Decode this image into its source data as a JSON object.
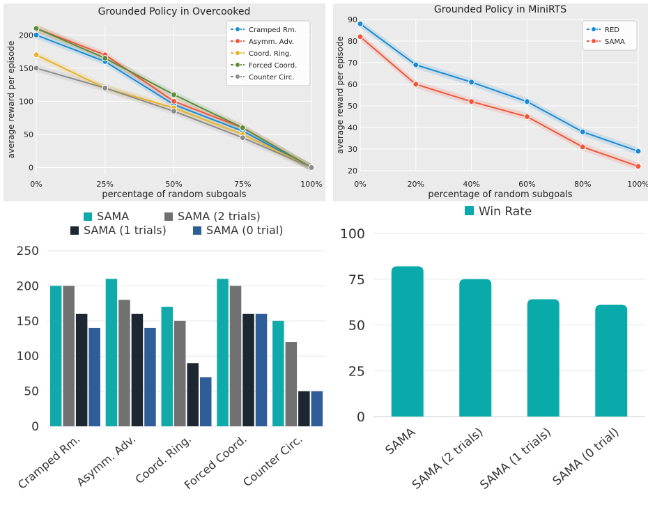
{
  "chart_data": [
    {
      "type": "line",
      "title": "Grounded Policy in Overcooked",
      "xlabel": "percentage of random subgoals",
      "ylabel": "average reward per episode",
      "x": [
        0,
        25,
        50,
        75,
        100
      ],
      "x_tick_labels": [
        "0%",
        "25%",
        "50%",
        "75%",
        "100%"
      ],
      "xlim": [
        0,
        100
      ],
      "ylim": [
        -10,
        215
      ],
      "y_ticks": [
        0,
        50,
        100,
        150,
        200
      ],
      "grid": true,
      "legend_position": "top-right",
      "series": [
        {
          "name": "Cramped Rm.",
          "color": "#1a8ad4",
          "values": [
            200,
            160,
            95,
            55,
            0
          ]
        },
        {
          "name": "Asymm. Adv.",
          "color": "#f2553a",
          "values": [
            210,
            170,
            100,
            60,
            0
          ]
        },
        {
          "name": "Coord. Ring.",
          "color": "#ebb229",
          "values": [
            170,
            120,
            90,
            50,
            0
          ]
        },
        {
          "name": "Forced Coord.",
          "color": "#5d8c3a",
          "values": [
            210,
            165,
            110,
            60,
            0
          ]
        },
        {
          "name": "Counter Circ.",
          "color": "#8b8b8b",
          "values": [
            150,
            120,
            85,
            45,
            0
          ]
        }
      ]
    },
    {
      "type": "line",
      "title": "Grounded Policy in MiniRTS",
      "xlabel": "percentage of random subgoals",
      "ylabel": "average reward per episode",
      "x": [
        0,
        20,
        40,
        60,
        80,
        100
      ],
      "x_tick_labels": [
        "0%",
        "20%",
        "40%",
        "60%",
        "80%",
        "100%"
      ],
      "xlim": [
        0,
        100
      ],
      "ylim": [
        20,
        90
      ],
      "y_ticks": [
        20,
        30,
        40,
        50,
        60,
        70,
        80,
        90
      ],
      "grid": true,
      "legend_position": "top-right",
      "series": [
        {
          "name": "RED",
          "color": "#1a8ad4",
          "values": [
            88,
            69,
            61,
            52,
            38,
            29
          ]
        },
        {
          "name": "SAMA",
          "color": "#f2553a",
          "values": [
            82,
            60,
            52,
            45,
            31,
            22
          ]
        }
      ]
    },
    {
      "type": "bar",
      "categories": [
        "Cramped Rm.",
        "Asymm. Adv.",
        "Coord. Ring.",
        "Forced Coord.",
        "Counter Circ."
      ],
      "ylim": [
        0,
        250
      ],
      "y_ticks": [
        0,
        50,
        100,
        150,
        200,
        250
      ],
      "legend_position": "top",
      "series": [
        {
          "name": "SAMA",
          "color": "#11aaaa",
          "values": [
            200,
            210,
            170,
            210,
            150
          ]
        },
        {
          "name": "SAMA (2 trials)",
          "color": "#717171",
          "values": [
            200,
            180,
            150,
            200,
            120
          ]
        },
        {
          "name": "SAMA (1 trials)",
          "color": "#1d2731",
          "values": [
            160,
            160,
            90,
            160,
            50
          ]
        },
        {
          "name": "SAMA (0 trial)",
          "color": "#2f5d98",
          "values": [
            140,
            140,
            70,
            160,
            50
          ]
        }
      ]
    },
    {
      "type": "bar",
      "categories": [
        "SAMA",
        "SAMA (2 trials)",
        "SAMA (1 trials)",
        "SAMA (0 trial)"
      ],
      "ylim": [
        0,
        100
      ],
      "y_ticks": [
        0,
        25,
        50,
        75,
        100
      ],
      "legend_position": "top",
      "series": [
        {
          "name": "Win Rate",
          "color": "#0aaaaa",
          "values": [
            82,
            75,
            64,
            61
          ]
        }
      ]
    }
  ]
}
